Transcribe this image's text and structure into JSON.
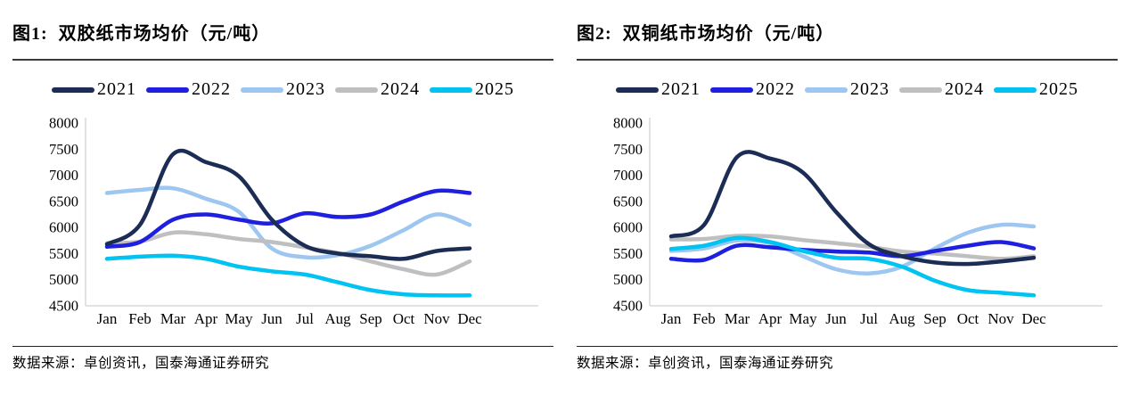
{
  "page": {
    "background": "#ffffff",
    "axis_color": "#d9d9d9",
    "text_color": "#000000"
  },
  "chart_data": [
    {
      "type": "line",
      "title_prefix": "图1:",
      "title": "双胶纸市场均价（元/吨）",
      "source": "数据来源：卓创资讯，国泰海通证券研究",
      "categories": [
        "Jan",
        "Feb",
        "Mar",
        "Apr",
        "May",
        "Jun",
        "Jul",
        "Aug",
        "Sep",
        "Oct",
        "Nov",
        "Dec"
      ],
      "ylim": [
        4500,
        8000
      ],
      "ytick_step": 500,
      "yticks": [
        8000,
        7500,
        7000,
        6500,
        6000,
        5500,
        5000,
        4500
      ],
      "grid": false,
      "legend_position": "top",
      "series": [
        {
          "name": "2021",
          "color": "#1b2c55",
          "values": [
            5680,
            6050,
            7400,
            7250,
            6980,
            6150,
            5650,
            5500,
            5450,
            5400,
            5550,
            5600
          ]
        },
        {
          "name": "2022",
          "color": "#1f1fe0",
          "values": [
            5630,
            5720,
            6150,
            6250,
            6150,
            6080,
            6270,
            6200,
            6250,
            6500,
            6700,
            6660
          ]
        },
        {
          "name": "2023",
          "color": "#9dc6f0",
          "values": [
            6660,
            6720,
            6750,
            6550,
            6300,
            5600,
            5430,
            5470,
            5650,
            5950,
            6250,
            6050
          ]
        },
        {
          "name": "2024",
          "color": "#bfbfbf",
          "values": [
            5700,
            5730,
            5900,
            5870,
            5780,
            5720,
            5620,
            5510,
            5350,
            5200,
            5100,
            5350
          ]
        },
        {
          "name": "2025",
          "color": "#00c3f2",
          "values": [
            5400,
            5440,
            5460,
            5400,
            5250,
            5160,
            5100,
            4950,
            4800,
            4720,
            4700,
            4700
          ]
        }
      ]
    },
    {
      "type": "line",
      "title_prefix": "图2:",
      "title": "双铜纸市场均价（元/吨）",
      "source": "数据来源：卓创资讯，国泰海通证券研究",
      "categories": [
        "Jan",
        "Feb",
        "Mar",
        "Apr",
        "May",
        "Jun",
        "Jul",
        "Aug",
        "Sep",
        "Oct",
        "Nov",
        "Dec"
      ],
      "ylim": [
        4500,
        8000
      ],
      "ytick_step": 500,
      "yticks": [
        8000,
        7500,
        7000,
        6500,
        6000,
        5500,
        5000,
        4500
      ],
      "grid": false,
      "legend_position": "top",
      "series": [
        {
          "name": "2021",
          "color": "#1b2c55",
          "values": [
            5830,
            6050,
            7350,
            7320,
            7050,
            6300,
            5680,
            5450,
            5330,
            5300,
            5350,
            5420
          ]
        },
        {
          "name": "2022",
          "color": "#1f1fe0",
          "values": [
            5400,
            5380,
            5650,
            5620,
            5570,
            5540,
            5520,
            5450,
            5550,
            5650,
            5720,
            5600
          ]
        },
        {
          "name": "2023",
          "color": "#9dc6f0",
          "values": [
            5550,
            5600,
            5750,
            5700,
            5450,
            5200,
            5120,
            5250,
            5600,
            5900,
            6050,
            6020
          ]
        },
        {
          "name": "2024",
          "color": "#bfbfbf",
          "values": [
            5770,
            5780,
            5840,
            5830,
            5760,
            5700,
            5630,
            5540,
            5500,
            5450,
            5400,
            5450
          ]
        },
        {
          "name": "2025",
          "color": "#00c3f2",
          "values": [
            5590,
            5650,
            5800,
            5720,
            5550,
            5420,
            5400,
            5250,
            4980,
            4800,
            4750,
            4700
          ]
        }
      ]
    }
  ]
}
